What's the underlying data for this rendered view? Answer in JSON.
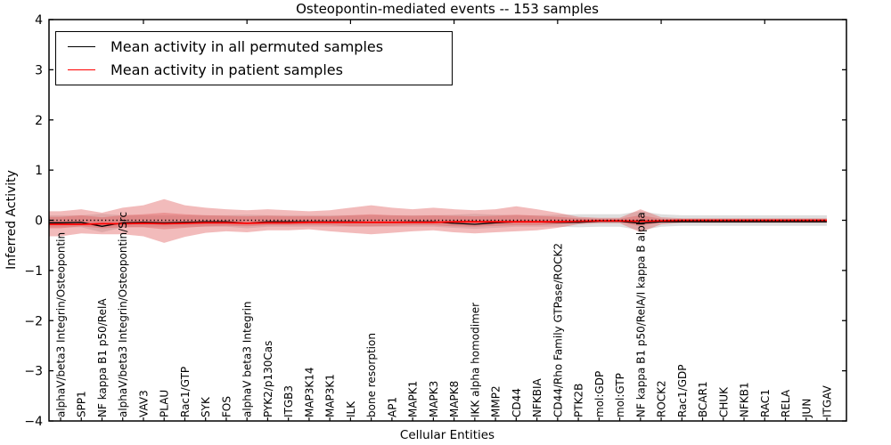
{
  "chart_data": {
    "type": "line",
    "title": "Osteopontin-mediated events -- 153 samples",
    "xlabel": "Cellular Entities",
    "ylabel": "Inferred Activity",
    "ylim": [
      -4,
      4
    ],
    "yticks": [
      -4,
      -3,
      -2,
      -1,
      0,
      1,
      2,
      3,
      4
    ],
    "grid": false,
    "legend_position": "upper left",
    "reference_line": {
      "y": 0,
      "style": "dotted",
      "color": "#000000"
    },
    "categories": [
      "alphaV/beta3 Integrin/Osteopontin",
      "SPP1",
      "NF kappa B1 p50/RelA",
      "alphaV/beta3 Integrin/Osteopontin/Src",
      "VAV3",
      "PLAU",
      "Rac1/GTP",
      "SYK",
      "FOS",
      "alphaV beta3 Integrin",
      "PYK2/p130Cas",
      "ITGB3",
      "MAP3K14",
      "MAP3K1",
      "ILK",
      "bone resorption",
      "AP1",
      "MAPK1",
      "MAPK3",
      "MAPK8",
      "IKK alpha homodimer",
      "MMP2",
      "CD44",
      "NFKBIA",
      "CD44/Rho Family GTPase/ROCK2",
      "PTK2B",
      "mol:GDP",
      "mol:GTP",
      "NF kappa B1 p50/RelA/I kappa B alpha",
      "ROCK2",
      "Rac1/GDP",
      "BCAR1",
      "CHUK",
      "NFKB1",
      "RAC1",
      "RELA",
      "JUN",
      "ITGAV"
    ],
    "series": [
      {
        "name": "Mean activity in all permuted samples",
        "color": "#000000",
        "values": [
          -0.05,
          -0.04,
          -0.12,
          -0.05,
          -0.04,
          -0.05,
          -0.04,
          -0.03,
          -0.03,
          -0.06,
          -0.03,
          -0.03,
          -0.03,
          -0.03,
          -0.03,
          -0.04,
          -0.04,
          -0.03,
          -0.03,
          -0.06,
          -0.08,
          -0.05,
          -0.03,
          -0.03,
          -0.04,
          -0.04,
          -0.02,
          -0.02,
          -0.06,
          -0.03,
          -0.03,
          -0.03,
          -0.03,
          -0.03,
          -0.03,
          -0.03,
          -0.03,
          -0.03
        ]
      },
      {
        "name": "Mean activity in patient samples",
        "color": "#ff0000",
        "values": [
          -0.08,
          -0.08,
          -0.07,
          -0.07,
          -0.06,
          -0.07,
          -0.06,
          -0.05,
          -0.05,
          -0.06,
          -0.05,
          -0.05,
          -0.04,
          -0.04,
          -0.04,
          -0.04,
          -0.04,
          -0.04,
          -0.04,
          -0.03,
          -0.03,
          -0.03,
          -0.03,
          -0.03,
          -0.03,
          -0.02,
          -0.01,
          -0.01,
          -0.02,
          -0.01,
          0,
          0,
          0,
          0,
          0,
          0,
          0,
          0
        ]
      }
    ],
    "bands": [
      {
        "name": "permuted samples range",
        "color": "#999999",
        "opacity": 0.32,
        "upper": [
          0.1,
          0.1,
          0.13,
          0.1,
          0.1,
          0.1,
          0.1,
          0.1,
          0.1,
          0.11,
          0.1,
          0.1,
          0.1,
          0.1,
          0.1,
          0.1,
          0.1,
          0.1,
          0.1,
          0.11,
          0.13,
          0.11,
          0.1,
          0.1,
          0.11,
          0.12,
          0.12,
          0.12,
          0.18,
          0.12,
          0.1,
          0.1,
          0.1,
          0.1,
          0.1,
          0.1,
          0.1,
          0.1
        ],
        "lower": [
          -0.14,
          -0.14,
          -0.24,
          -0.14,
          -0.13,
          -0.13,
          -0.13,
          -0.13,
          -0.13,
          -0.16,
          -0.13,
          -0.13,
          -0.13,
          -0.13,
          -0.13,
          -0.13,
          -0.13,
          -0.13,
          -0.13,
          -0.15,
          -0.17,
          -0.15,
          -0.13,
          -0.13,
          -0.13,
          -0.14,
          -0.13,
          -0.13,
          -0.2,
          -0.13,
          -0.11,
          -0.11,
          -0.11,
          -0.11,
          -0.11,
          -0.11,
          -0.11,
          -0.11
        ]
      },
      {
        "name": "patient samples outer range",
        "color": "#e05c5c",
        "opacity": 0.42,
        "upper": [
          0.18,
          0.22,
          0.15,
          0.25,
          0.3,
          0.42,
          0.3,
          0.25,
          0.22,
          0.2,
          0.22,
          0.2,
          0.18,
          0.2,
          0.25,
          0.3,
          0.25,
          0.22,
          0.25,
          0.22,
          0.2,
          0.22,
          0.28,
          0.22,
          0.15,
          0.07,
          0.05,
          0.05,
          0.22,
          0.06,
          0.04,
          0.04,
          0.04,
          0.04,
          0.04,
          0.04,
          0.04,
          0.04
        ],
        "lower": [
          -0.32,
          -0.26,
          -0.28,
          -0.28,
          -0.32,
          -0.45,
          -0.33,
          -0.25,
          -0.22,
          -0.24,
          -0.2,
          -0.2,
          -0.18,
          -0.22,
          -0.25,
          -0.28,
          -0.25,
          -0.22,
          -0.2,
          -0.24,
          -0.26,
          -0.24,
          -0.22,
          -0.2,
          -0.15,
          -0.08,
          -0.06,
          -0.06,
          -0.24,
          -0.08,
          -0.05,
          -0.05,
          -0.05,
          -0.05,
          -0.05,
          -0.05,
          -0.05,
          -0.05
        ]
      },
      {
        "name": "patient samples inner range",
        "color": "#e05c5c",
        "opacity": 0.42,
        "upper": [
          0.07,
          0.1,
          0.06,
          0.1,
          0.12,
          0.15,
          0.12,
          0.1,
          0.09,
          0.08,
          0.09,
          0.08,
          0.08,
          0.08,
          0.1,
          0.12,
          0.1,
          0.09,
          0.1,
          0.09,
          0.08,
          0.09,
          0.11,
          0.09,
          0.07,
          0.04,
          0.03,
          0.03,
          0.1,
          0.03,
          0.02,
          0.02,
          0.02,
          0.02,
          0.02,
          0.02,
          0.02,
          0.02
        ],
        "lower": [
          -0.16,
          -0.12,
          -0.16,
          -0.14,
          -0.14,
          -0.18,
          -0.15,
          -0.12,
          -0.11,
          -0.12,
          -0.1,
          -0.1,
          -0.1,
          -0.1,
          -0.12,
          -0.12,
          -0.11,
          -0.1,
          -0.1,
          -0.12,
          -0.13,
          -0.11,
          -0.1,
          -0.1,
          -0.08,
          -0.05,
          -0.04,
          -0.04,
          -0.12,
          -0.04,
          -0.03,
          -0.03,
          -0.03,
          -0.03,
          -0.03,
          -0.03,
          -0.03,
          -0.03
        ]
      }
    ]
  }
}
